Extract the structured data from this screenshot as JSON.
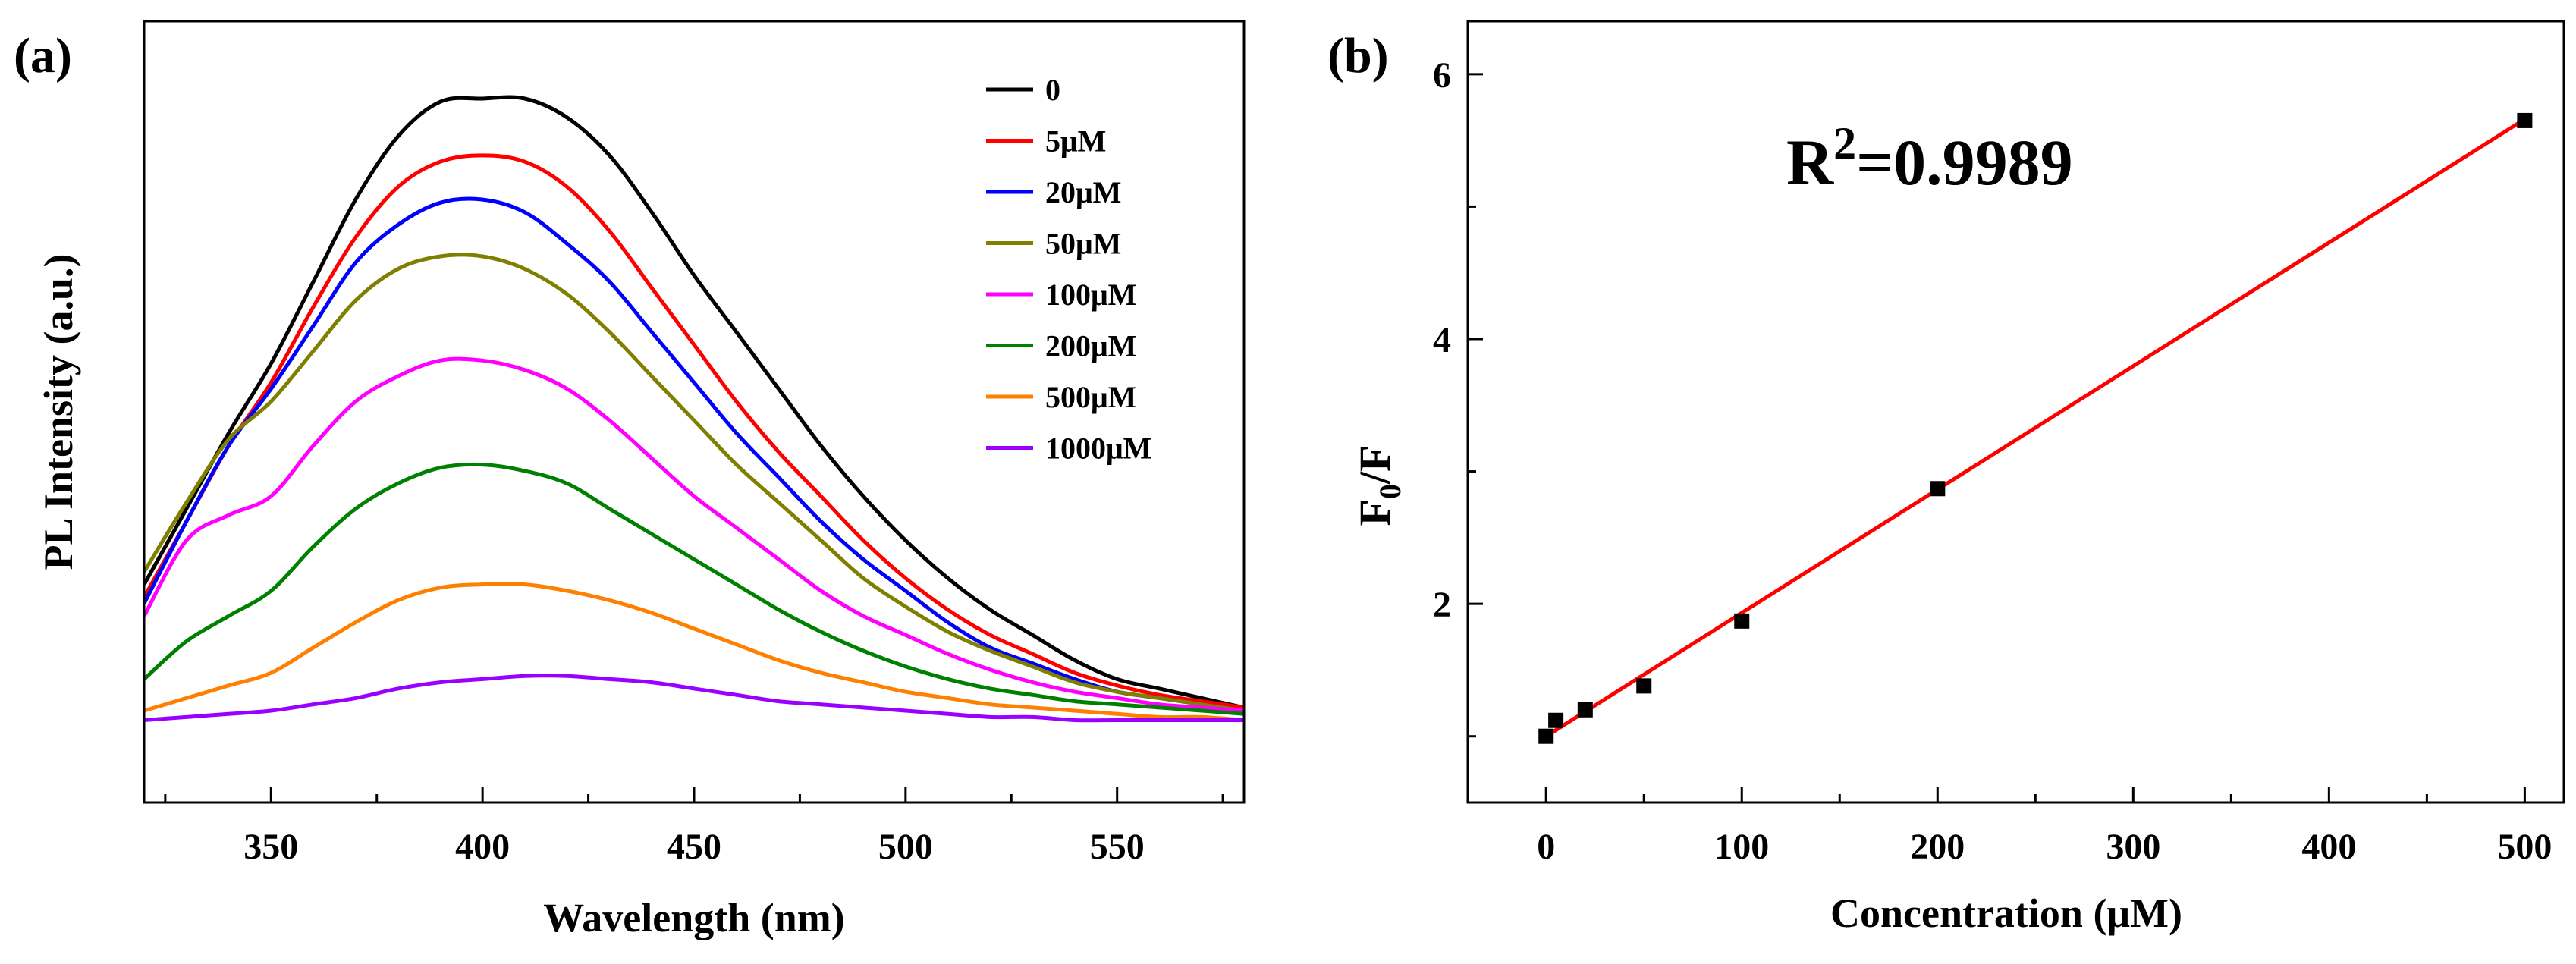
{
  "chart_data": [
    {
      "type": "line",
      "panel_label": "(a)",
      "title": "",
      "xlabel": "Wavelength (nm)",
      "ylabel": "PL Intensity (a.u.)",
      "xlim": [
        320,
        580
      ],
      "ylim": [
        0,
        100
      ],
      "x_ticks": [
        350,
        400,
        450,
        500,
        550
      ],
      "y_ticks_labeled": false,
      "legend_position": "top-right",
      "x": [
        320,
        330,
        340,
        350,
        360,
        370,
        380,
        390,
        400,
        410,
        420,
        430,
        440,
        450,
        460,
        470,
        480,
        490,
        500,
        510,
        520,
        530,
        540,
        550,
        560,
        570,
        580
      ],
      "series": [
        {
          "name": "0",
          "color": "#000000",
          "values": [
            23,
            35,
            47,
            58,
            71,
            84,
            94,
            99.5,
            100,
            100,
            97,
            91,
            82,
            72,
            63,
            54,
            45,
            37,
            30,
            24,
            19,
            15,
            11,
            8,
            6.5,
            5,
            3.5
          ]
        },
        {
          "name": "5μM",
          "color": "#ff0000",
          "values": [
            21,
            33,
            45,
            55,
            67,
            78,
            86,
            90,
            91,
            90,
            86,
            79,
            70,
            61,
            52,
            44,
            37,
            30,
            24,
            19,
            15,
            12,
            9,
            7,
            5.5,
            4.5,
            3.5
          ]
        },
        {
          "name": "20μM",
          "color": "#0000ff",
          "values": [
            20,
            33,
            45,
            54,
            64,
            74,
            80,
            83.5,
            84,
            82,
            77,
            71,
            63,
            55,
            47,
            40,
            33,
            27,
            22,
            17,
            13,
            10.5,
            8,
            6,
            5,
            4,
            3
          ]
        },
        {
          "name": "50μM",
          "color": "#808000",
          "values": [
            25,
            36,
            46,
            52,
            60,
            68,
            73,
            75,
            75,
            73,
            69,
            63,
            56,
            49,
            42,
            36,
            30,
            24,
            19.5,
            15.5,
            12.5,
            10,
            7.5,
            6,
            5,
            4,
            3
          ]
        },
        {
          "name": "100μM",
          "color": "#ff00ff",
          "values": [
            18,
            30,
            34,
            37,
            45,
            52,
            56,
            58.5,
            58.5,
            57,
            54,
            49,
            43,
            37,
            32,
            27,
            22,
            18,
            15,
            12,
            9.5,
            7.5,
            6,
            5,
            4,
            3.5,
            3
          ]
        },
        {
          "name": "200μM",
          "color": "#008000",
          "values": [
            8,
            14,
            18,
            22,
            29,
            35,
            39,
            41.5,
            42,
            41,
            39,
            35,
            31,
            27,
            23,
            19,
            15.5,
            12.5,
            10,
            8,
            6.5,
            5.5,
            4.5,
            4,
            3.5,
            3,
            2.5
          ]
        },
        {
          "name": "500μM",
          "color": "#ff8000",
          "values": [
            3,
            5,
            7,
            9,
            13,
            17,
            20.5,
            22.5,
            23,
            23,
            22,
            20.5,
            18.5,
            16,
            13.5,
            11,
            9,
            7.5,
            6,
            5,
            4,
            3.5,
            3,
            2.5,
            2,
            2,
            1.5
          ]
        },
        {
          "name": "1000μM",
          "color": "#9900ff",
          "values": [
            1.5,
            2,
            2.5,
            3,
            4,
            5,
            6.5,
            7.5,
            8,
            8.5,
            8.5,
            8,
            7.5,
            6.5,
            5.5,
            4.5,
            4,
            3.5,
            3,
            2.5,
            2,
            2,
            1.5,
            1.5,
            1.5,
            1.5,
            1.5
          ]
        }
      ]
    },
    {
      "type": "scatter",
      "panel_label": "(b)",
      "title": "",
      "xlabel": "Concentration (μM)",
      "ylabel": "F0/F",
      "ylabel_main": "F",
      "ylabel_sub": "0",
      "ylabel_rest": "/F",
      "xlim": [
        -40,
        520
      ],
      "ylim": [
        0.5,
        6.4
      ],
      "x_ticks": [
        0,
        100,
        200,
        300,
        400,
        500
      ],
      "y_ticks": [
        2,
        4,
        6
      ],
      "annotation_main": "R",
      "annotation_sup": "2",
      "annotation_rest": "=0.9989",
      "annotation_full": "R2=0.9989",
      "marker_color": "#000000",
      "fit_color": "#ff0000",
      "x": [
        0,
        5,
        20,
        50,
        100,
        200,
        500
      ],
      "y": [
        1.0,
        1.12,
        1.2,
        1.38,
        1.87,
        2.87,
        5.65
      ],
      "fit": {
        "slope": 0.00932,
        "intercept": 1.0,
        "x_range": [
          0,
          500
        ]
      }
    }
  ]
}
